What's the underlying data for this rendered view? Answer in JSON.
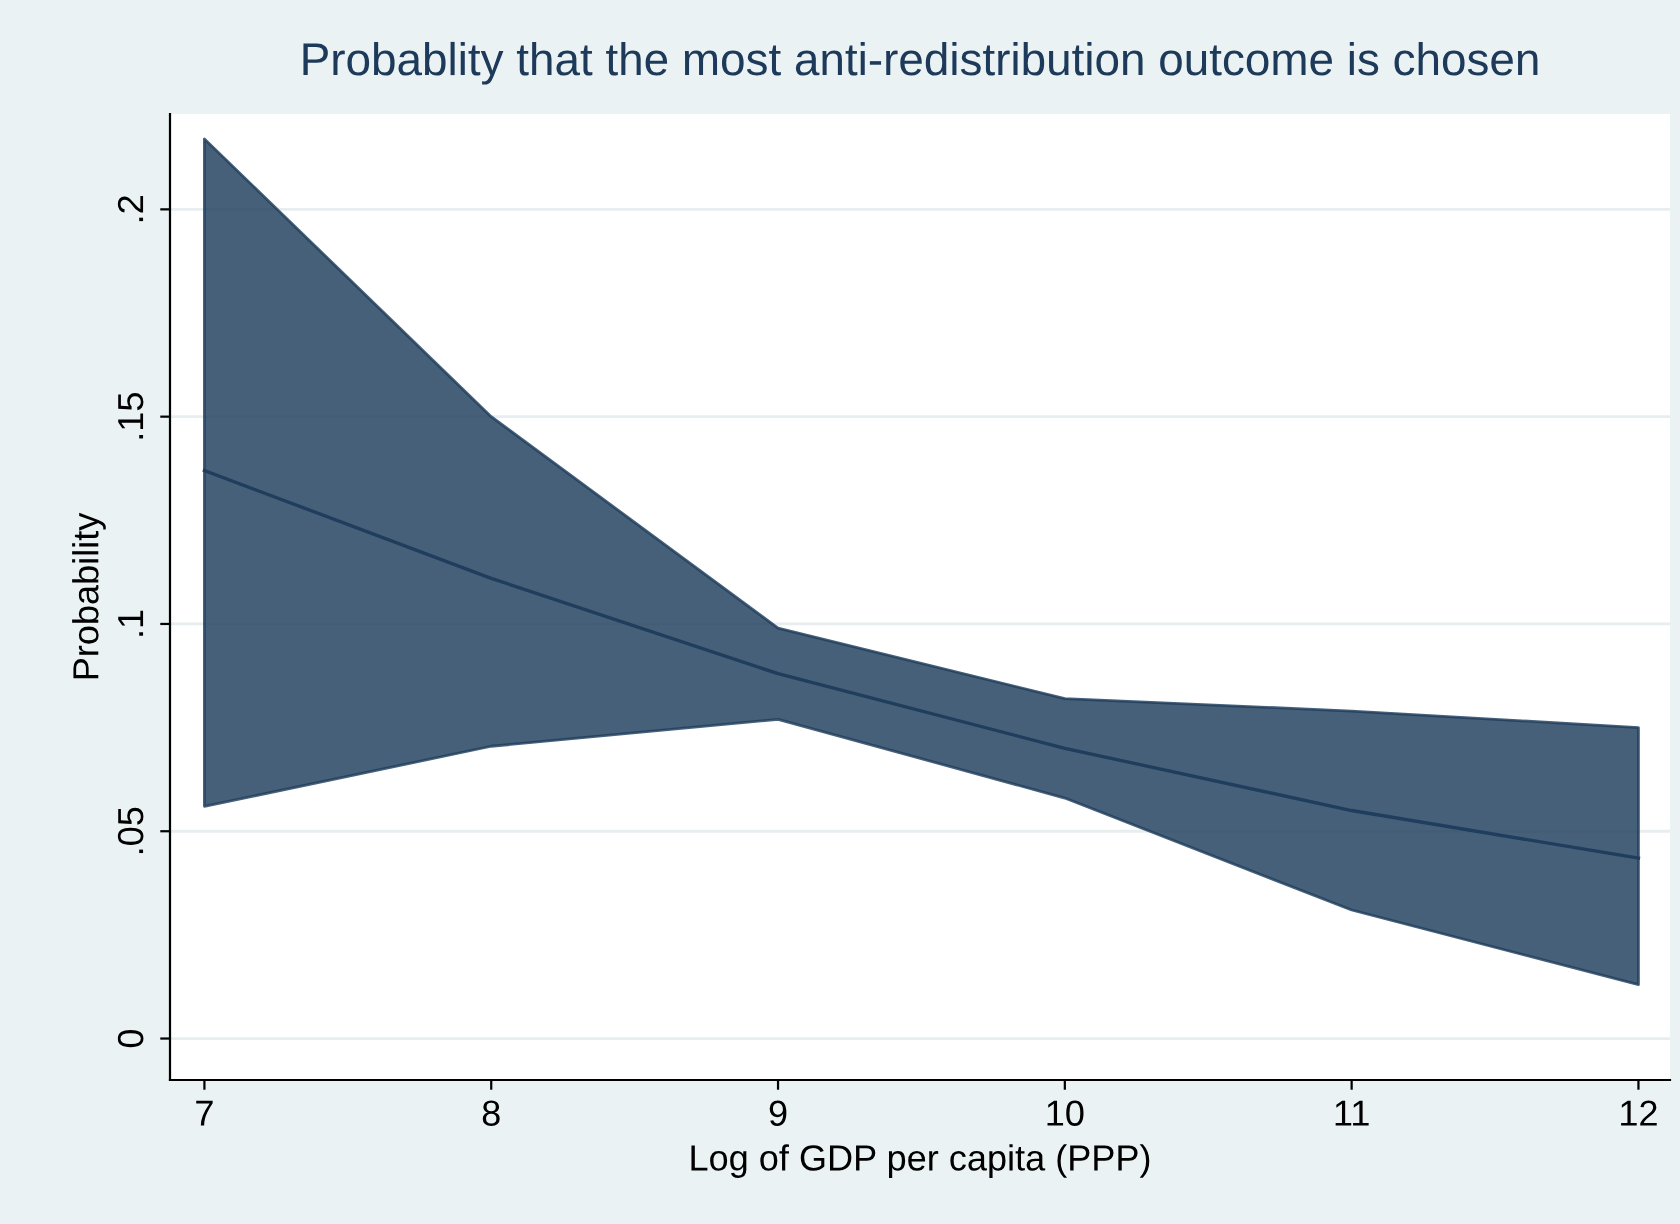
{
  "chart_data": {
    "type": "line",
    "title": "Probablity that the most anti-redistribution outcome is chosen",
    "xlabel": "Log of GDP per capita (PPP)",
    "ylabel": "Probability",
    "x": [
      7,
      8,
      9,
      10,
      11,
      12
    ],
    "series": [
      {
        "color": "#1f3d5c",
        "values": [
          0.137,
          0.111,
          0.088,
          0.07,
          0.055,
          0.0435
        ],
        "lower": [
          0.056,
          0.0705,
          0.077,
          0.058,
          0.031,
          0.013
        ],
        "upper": [
          0.217,
          0.15,
          0.099,
          0.082,
          0.079,
          0.075
        ]
      }
    ],
    "xlim": [
      6.88,
      12.11
    ],
    "ylim": [
      -0.01,
      0.223
    ],
    "xticks": [
      7,
      8,
      9,
      10,
      11,
      12
    ],
    "yticks": [
      {
        "value": 0,
        "label": "0"
      },
      {
        "value": 0.05,
        "label": ".05"
      },
      {
        "value": 0.1,
        "label": ".1"
      },
      {
        "value": 0.15,
        "label": ".15"
      },
      {
        "value": 0.2,
        "label": ".2"
      }
    ],
    "grid": "y",
    "legend": false,
    "marker": "none",
    "line_style": "solid"
  }
}
